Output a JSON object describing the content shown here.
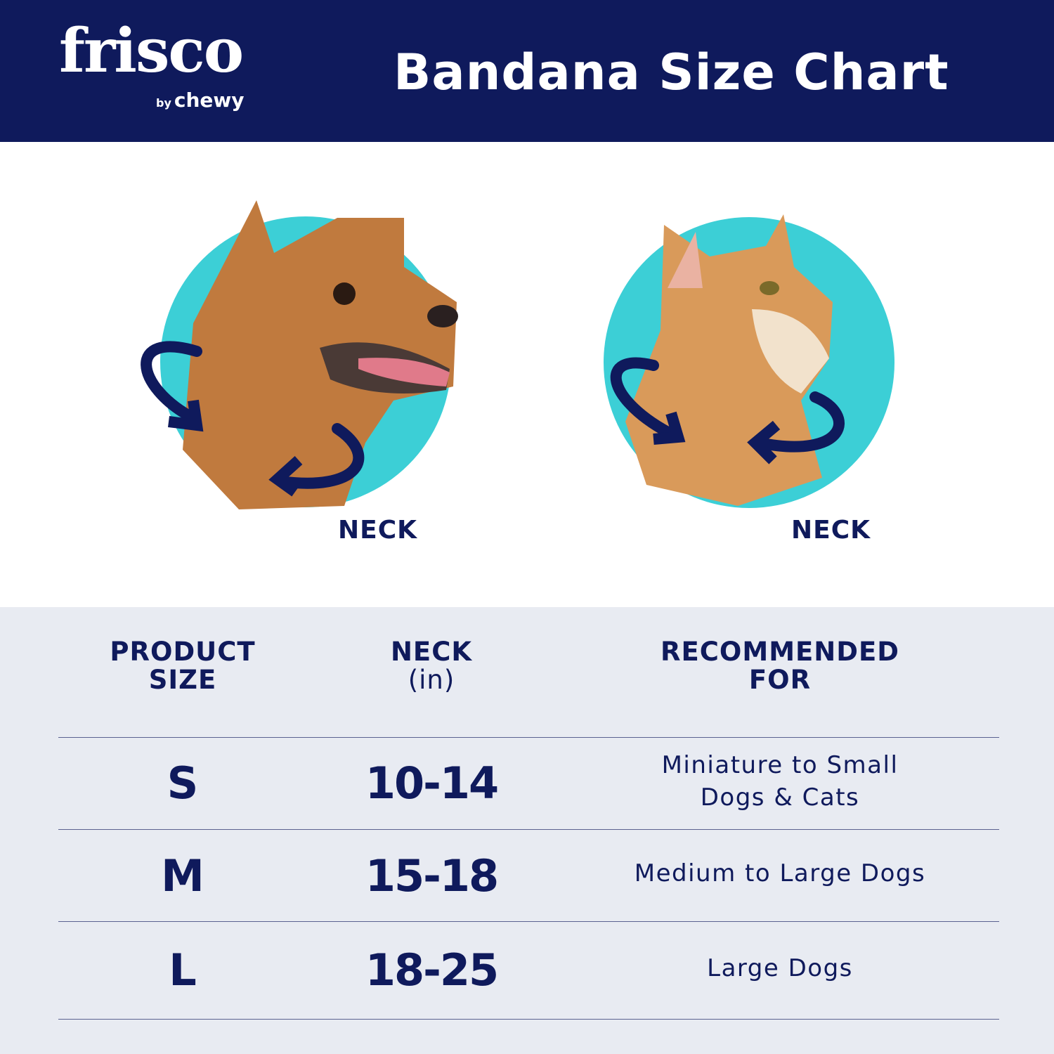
{
  "header": {
    "logo_main": "frisco",
    "logo_by": "by",
    "logo_brand": "chewy",
    "title": "Bandana Size Chart"
  },
  "pets": [
    {
      "animal": "dog",
      "label": "NECK"
    },
    {
      "animal": "cat",
      "label": "NECK"
    }
  ],
  "colors": {
    "navy": "#0f1a5c",
    "teal": "#3ccfd6",
    "table_bg": "#e8ebf2"
  },
  "table": {
    "headers": {
      "size": [
        "PRODUCT",
        "SIZE"
      ],
      "neck": [
        "NECK",
        "(in)"
      ],
      "recommended": [
        "RECOMMENDED",
        "FOR"
      ]
    },
    "rows": [
      {
        "size": "S",
        "neck": "10-14",
        "recommended": [
          "Miniature to Small",
          "Dogs & Cats"
        ]
      },
      {
        "size": "M",
        "neck": "15-18",
        "recommended": [
          "Medium to Large Dogs"
        ]
      },
      {
        "size": "L",
        "neck": "18-25",
        "recommended": [
          "Large Dogs"
        ]
      }
    ]
  }
}
